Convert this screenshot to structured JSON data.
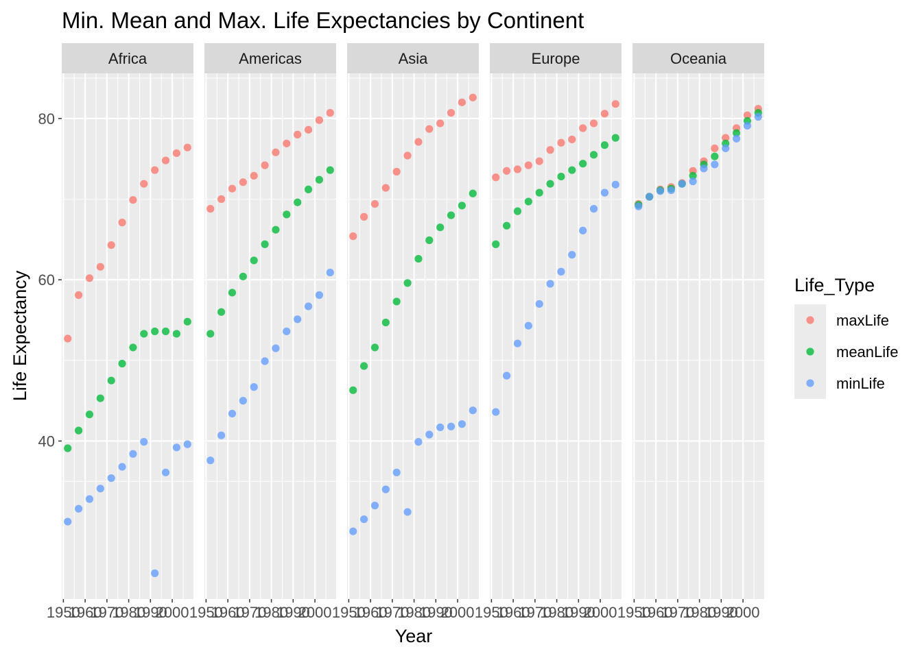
{
  "chart_data": {
    "type": "scatter",
    "title": "Min. Mean and Max. Life Expectancies by Continent",
    "xlabel": "Year",
    "ylabel": "Life Expectancy",
    "facets": [
      "Africa",
      "Americas",
      "Asia",
      "Europe",
      "Oceania"
    ],
    "x": [
      1952,
      1957,
      1962,
      1967,
      1972,
      1977,
      1982,
      1987,
      1992,
      1997,
      2002,
      2007
    ],
    "x_ticks": [
      1950,
      1960,
      1970,
      1980,
      1990,
      2000
    ],
    "x_tick_labels": [
      "1950",
      "1960",
      "1970",
      "1980",
      "1990",
      "2000"
    ],
    "xlim": [
      1949.25,
      2009.75
    ],
    "y_ticks": [
      40,
      60,
      80
    ],
    "y_tick_labels": [
      "40",
      "60",
      "80"
    ],
    "ylim": [
      20.4,
      85.6
    ],
    "grid": true,
    "legend": {
      "title": "Life_Type",
      "position": "right",
      "entries": [
        "maxLife",
        "meanLife",
        "minLife"
      ]
    },
    "series_colors": {
      "maxLife": "#F8766D",
      "meanLife": "#00BA38",
      "minLife": "#619CFF"
    },
    "panels": [
      {
        "facet": "Africa",
        "series": [
          {
            "name": "maxLife",
            "values": [
              52.7,
              58.1,
              60.2,
              61.6,
              64.3,
              67.1,
              69.9,
              71.9,
              73.6,
              74.8,
              75.7,
              76.4
            ]
          },
          {
            "name": "meanLife",
            "values": [
              39.1,
              41.3,
              43.3,
              45.3,
              47.5,
              49.6,
              51.6,
              53.3,
              53.6,
              53.6,
              53.3,
              54.8
            ]
          },
          {
            "name": "minLife",
            "values": [
              30.0,
              31.6,
              32.8,
              34.1,
              35.4,
              36.8,
              38.4,
              39.9,
              23.6,
              36.1,
              39.2,
              39.6
            ]
          }
        ]
      },
      {
        "facet": "Americas",
        "series": [
          {
            "name": "maxLife",
            "values": [
              68.8,
              70.0,
              71.3,
              72.1,
              72.9,
              74.2,
              75.8,
              76.9,
              78.0,
              78.6,
              79.8,
              80.7
            ]
          },
          {
            "name": "meanLife",
            "values": [
              53.3,
              56.0,
              58.4,
              60.4,
              62.4,
              64.4,
              66.2,
              68.1,
              69.6,
              71.2,
              72.4,
              73.6
            ]
          },
          {
            "name": "minLife",
            "values": [
              37.6,
              40.7,
              43.4,
              45.0,
              46.7,
              49.9,
              51.5,
              53.6,
              55.1,
              56.7,
              58.1,
              60.9
            ]
          }
        ]
      },
      {
        "facet": "Asia",
        "series": [
          {
            "name": "maxLife",
            "values": [
              65.4,
              67.8,
              69.4,
              71.4,
              73.4,
              75.4,
              77.1,
              78.7,
              79.4,
              80.7,
              82.0,
              82.6
            ]
          },
          {
            "name": "meanLife",
            "values": [
              46.3,
              49.3,
              51.6,
              54.7,
              57.3,
              59.6,
              62.6,
              64.9,
              66.5,
              68.0,
              69.2,
              70.7
            ]
          },
          {
            "name": "minLife",
            "values": [
              28.8,
              30.3,
              32.0,
              34.0,
              36.1,
              31.2,
              39.9,
              40.8,
              41.7,
              41.8,
              42.1,
              43.8
            ]
          }
        ]
      },
      {
        "facet": "Europe",
        "series": [
          {
            "name": "maxLife",
            "values": [
              72.7,
              73.5,
              73.7,
              74.2,
              74.7,
              76.1,
              76.99,
              77.4,
              78.8,
              79.4,
              80.6,
              81.8
            ]
          },
          {
            "name": "meanLife",
            "values": [
              64.4,
              66.7,
              68.5,
              69.7,
              70.8,
              71.9,
              72.8,
              73.6,
              74.4,
              75.5,
              76.7,
              77.6
            ]
          },
          {
            "name": "minLife",
            "values": [
              43.6,
              48.1,
              52.1,
              54.3,
              57.0,
              59.5,
              61.0,
              63.1,
              66.1,
              68.8,
              70.8,
              71.8
            ]
          }
        ]
      },
      {
        "facet": "Oceania",
        "series": [
          {
            "name": "maxLife",
            "values": [
              69.4,
              70.3,
              71.2,
              71.5,
              72.0,
              73.5,
              74.7,
              76.3,
              77.6,
              78.8,
              80.4,
              81.2
            ]
          },
          {
            "name": "meanLife",
            "values": [
              69.3,
              70.3,
              71.1,
              71.3,
              71.9,
              72.9,
              74.3,
              75.3,
              76.9,
              78.2,
              79.7,
              80.7
            ]
          },
          {
            "name": "minLife",
            "values": [
              69.1,
              70.3,
              71.0,
              71.1,
              71.9,
              72.2,
              73.8,
              74.3,
              76.3,
              77.5,
              79.1,
              80.2
            ]
          }
        ]
      }
    ]
  }
}
